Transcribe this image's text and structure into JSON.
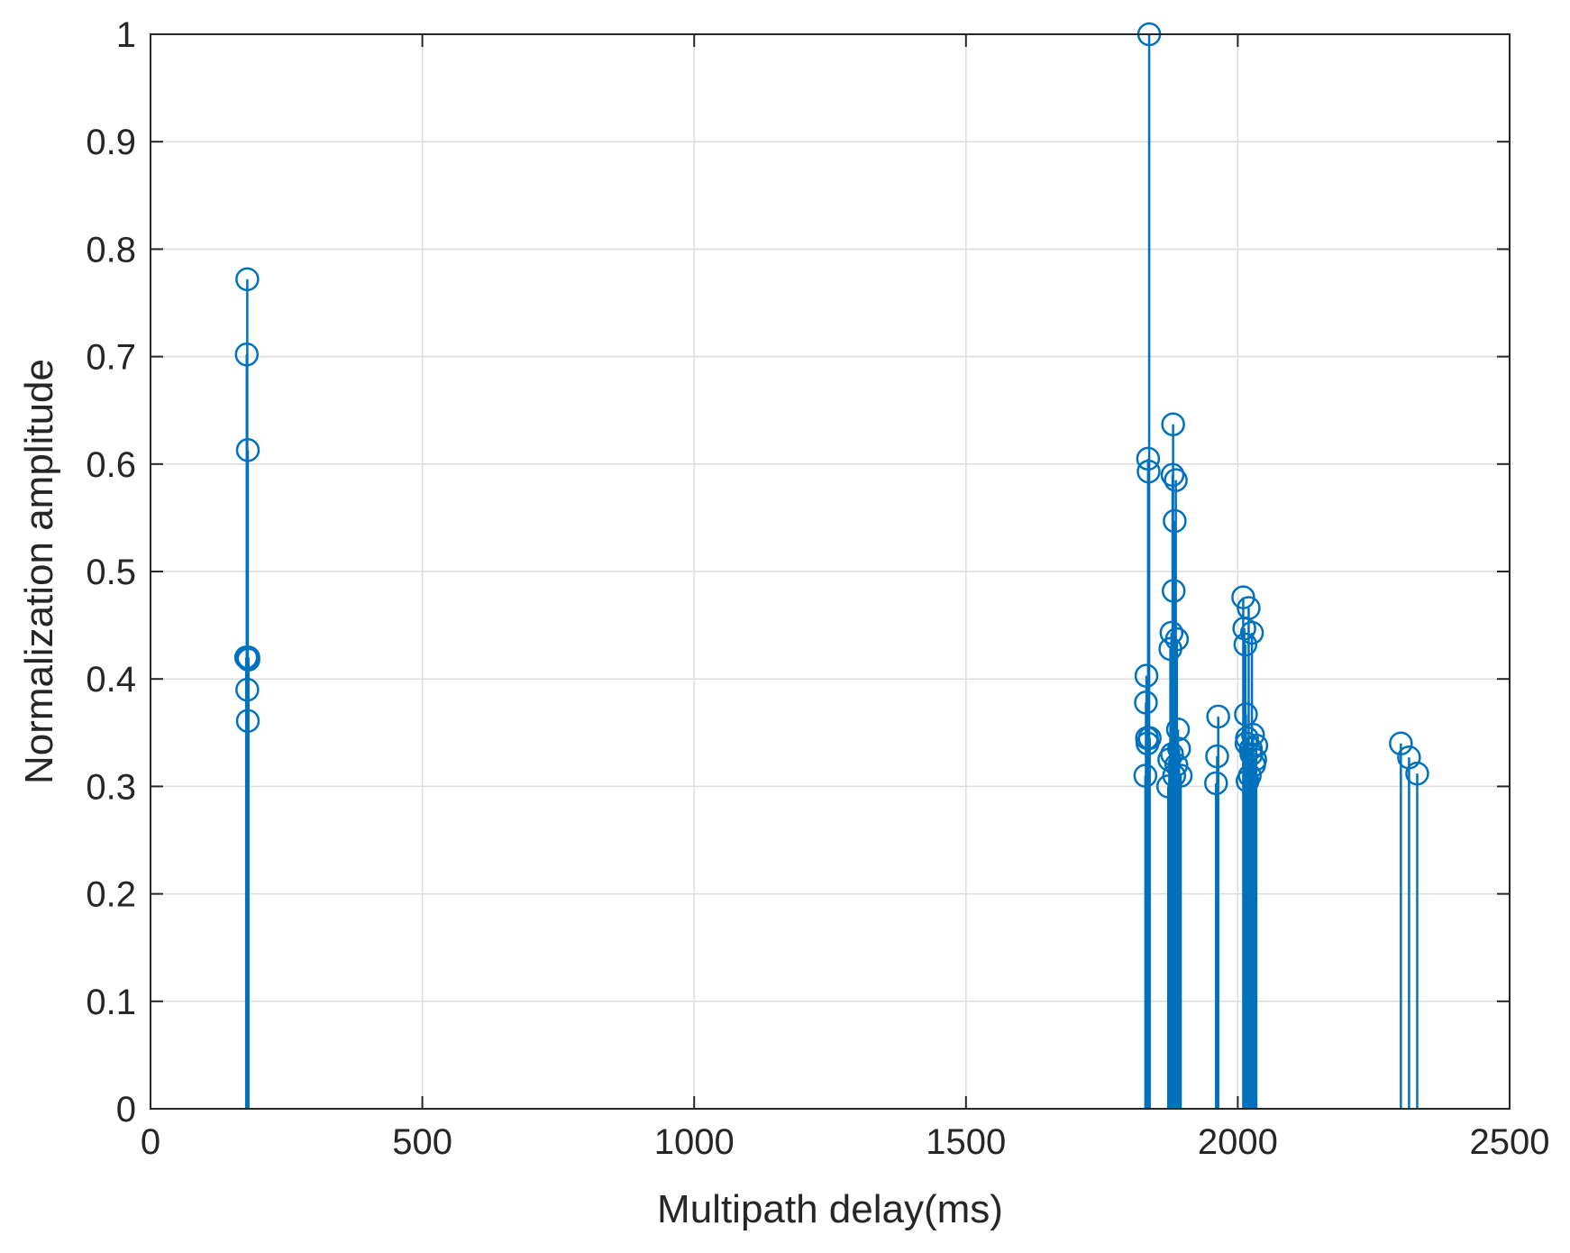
{
  "chart_data": {
    "type": "stem",
    "title": "",
    "xlabel": "Multipath delay(ms)",
    "ylabel": "Normalization amplitude",
    "xlim": [
      0,
      2500
    ],
    "ylim": [
      0,
      1
    ],
    "xticks": [
      0,
      500,
      1000,
      1500,
      2000,
      2500
    ],
    "xtick_labels": [
      "0",
      "500",
      "1000",
      "1500",
      "2000",
      "2500"
    ],
    "yticks": [
      0,
      0.1,
      0.2,
      0.3,
      0.4,
      0.5,
      0.6,
      0.7,
      0.8,
      0.9,
      1
    ],
    "ytick_labels": [
      "0",
      "0.1",
      "0.2",
      "0.3",
      "0.4",
      "0.5",
      "0.6",
      "0.7",
      "0.8",
      "0.9",
      "1"
    ],
    "grid": true,
    "box": true,
    "marker": "circle-open",
    "color": "#0072BD",
    "series": [
      {
        "x": [
          178,
          177,
          179,
          176,
          180,
          178,
          179,
          180,
          1830,
          1833,
          1831,
          1832,
          1834,
          1835,
          1836,
          1837,
          1838,
          1872,
          1874,
          1876,
          1878,
          1880,
          1881,
          1882,
          1884,
          1886,
          1888,
          1890,
          1892,
          1895,
          1879,
          1883,
          1887,
          1960,
          1962,
          1964,
          2010,
          2012,
          2014,
          2015,
          2016,
          2018,
          2020,
          2022,
          2024,
          2026,
          2028,
          2030,
          2032,
          2034,
          2017,
          2025,
          2300,
          2315,
          2330
        ],
        "y": [
          0.772,
          0.702,
          0.613,
          0.42,
          0.418,
          0.39,
          0.361,
          0.42,
          0.31,
          0.345,
          0.378,
          0.403,
          0.34,
          0.605,
          0.593,
          1.0,
          0.345,
          0.3,
          0.325,
          0.428,
          0.443,
          0.59,
          0.637,
          0.482,
          0.547,
          0.585,
          0.437,
          0.353,
          0.335,
          0.31,
          0.33,
          0.31,
          0.32,
          0.303,
          0.328,
          0.365,
          0.476,
          0.447,
          0.432,
          0.367,
          0.34,
          0.305,
          0.466,
          0.31,
          0.335,
          0.443,
          0.348,
          0.32,
          0.325,
          0.338,
          0.345,
          0.33,
          0.34,
          0.327,
          0.312
        ]
      }
    ]
  }
}
